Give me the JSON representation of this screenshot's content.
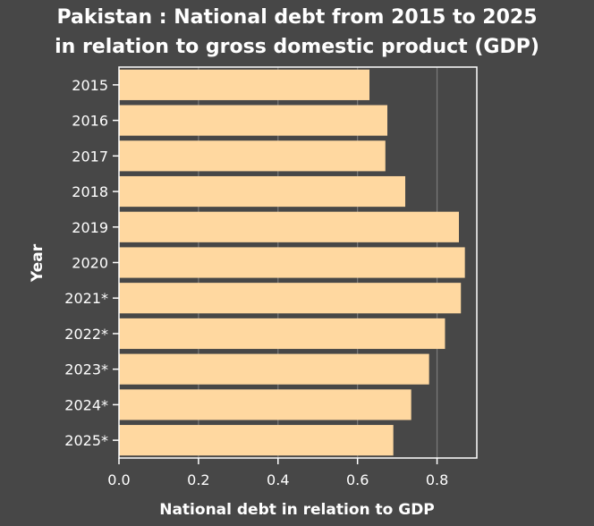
{
  "chart_data": {
    "type": "bar",
    "orientation": "horizontal",
    "title": "Pakistan : National debt from 2015 to 2025 in relation to gross domestic product (GDP)",
    "title_lines": [
      "Pakistan : National debt from 2015 to 2025",
      "in relation to gross domestic product (GDP)"
    ],
    "xlabel": "National debt in relation to GDP",
    "ylabel": "Year",
    "categories": [
      "2015",
      "2016",
      "2017",
      "2018",
      "2019",
      "2020",
      "2021*",
      "2022*",
      "2023*",
      "2024*",
      "2025*"
    ],
    "values": [
      0.63,
      0.675,
      0.67,
      0.72,
      0.855,
      0.87,
      0.86,
      0.82,
      0.78,
      0.735,
      0.69
    ],
    "xlim": [
      0,
      0.9
    ],
    "xticks": [
      "0.0",
      "0.2",
      "0.4",
      "0.6",
      "0.8"
    ],
    "grid": "vertical",
    "colors": {
      "background": "#474747",
      "plot_background": "#474747",
      "bar": "#ffd8a0",
      "grid": "#7a7a7a",
      "axis": "#ffffff",
      "text": "#ffffff"
    }
  }
}
